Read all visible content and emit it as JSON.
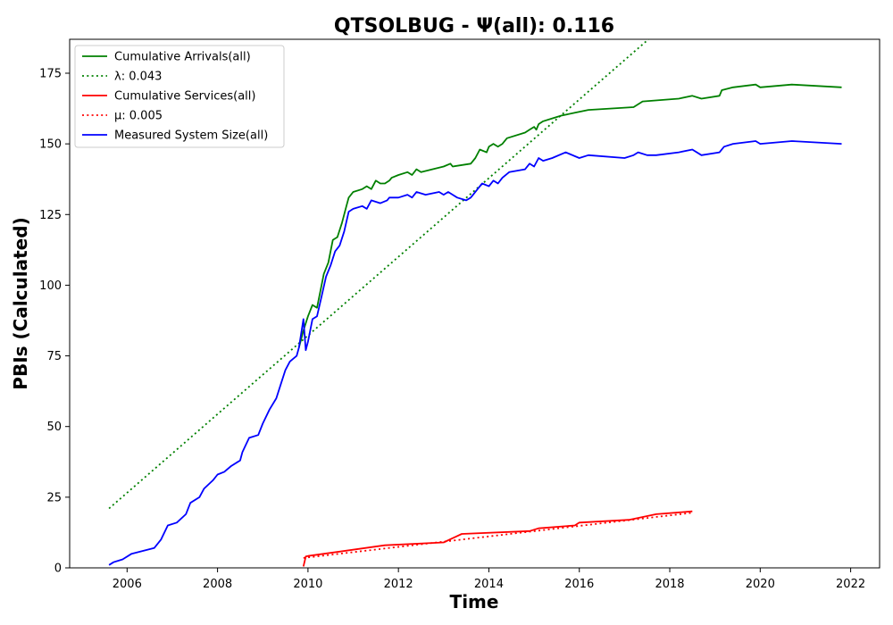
{
  "chart_data": {
    "type": "line",
    "title": "QTSOLBUG -  Ψ(all): 0.116",
    "xlabel": "Time",
    "ylabel": "PBIs (Calculated)",
    "xlim": [
      2004.73,
      2022.64
    ],
    "ylim": [
      0,
      187
    ],
    "x_ticks": [
      2006,
      2008,
      2010,
      2012,
      2014,
      2016,
      2018,
      2020,
      2022
    ],
    "x_tick_labels": [
      "2006",
      "2008",
      "2010",
      "2012",
      "2014",
      "2016",
      "2018",
      "2020",
      "2022"
    ],
    "y_ticks": [
      0,
      25,
      50,
      75,
      100,
      125,
      150,
      175
    ],
    "y_tick_labels": [
      "0",
      "25",
      "50",
      "75",
      "100",
      "125",
      "150",
      "175"
    ],
    "grid": false,
    "legend_position": "upper-left",
    "series": [
      {
        "name": "Cumulative Arrivals(all)",
        "color": "#008000",
        "style": "solid",
        "points": [
          [
            2009.8,
            78
          ],
          [
            2009.9,
            84
          ],
          [
            2010.0,
            89
          ],
          [
            2010.1,
            93
          ],
          [
            2010.2,
            92
          ],
          [
            2010.3,
            100
          ],
          [
            2010.35,
            104
          ],
          [
            2010.45,
            108
          ],
          [
            2010.55,
            116
          ],
          [
            2010.65,
            117
          ],
          [
            2010.75,
            122
          ],
          [
            2010.85,
            128
          ],
          [
            2010.9,
            131
          ],
          [
            2011.0,
            133
          ],
          [
            2011.2,
            134
          ],
          [
            2011.3,
            135
          ],
          [
            2011.4,
            134
          ],
          [
            2011.5,
            137
          ],
          [
            2011.6,
            136
          ],
          [
            2011.7,
            136
          ],
          [
            2011.8,
            137
          ],
          [
            2011.85,
            138
          ],
          [
            2012.0,
            139
          ],
          [
            2012.2,
            140
          ],
          [
            2012.3,
            139
          ],
          [
            2012.4,
            141
          ],
          [
            2012.5,
            140
          ],
          [
            2013.0,
            142
          ],
          [
            2013.15,
            143
          ],
          [
            2013.2,
            142
          ],
          [
            2013.6,
            143
          ],
          [
            2013.7,
            145
          ],
          [
            2013.8,
            148
          ],
          [
            2013.95,
            147
          ],
          [
            2014.0,
            149
          ],
          [
            2014.1,
            150
          ],
          [
            2014.2,
            149
          ],
          [
            2014.3,
            150
          ],
          [
            2014.4,
            152
          ],
          [
            2014.8,
            154
          ],
          [
            2014.9,
            155
          ],
          [
            2015.0,
            156
          ],
          [
            2015.05,
            155
          ],
          [
            2015.1,
            157
          ],
          [
            2015.2,
            158
          ],
          [
            2015.4,
            159
          ],
          [
            2015.6,
            160
          ],
          [
            2015.9,
            161
          ],
          [
            2016.2,
            162
          ],
          [
            2017.2,
            163
          ],
          [
            2017.4,
            165
          ],
          [
            2018.2,
            166
          ],
          [
            2018.5,
            167
          ],
          [
            2018.7,
            166
          ],
          [
            2019.1,
            167
          ],
          [
            2019.15,
            169
          ],
          [
            2019.4,
            170
          ],
          [
            2019.9,
            171
          ],
          [
            2020.0,
            170
          ],
          [
            2020.7,
            171
          ],
          [
            2021.8,
            170
          ]
        ]
      },
      {
        "name": "λ: 0.043",
        "color": "#008000",
        "style": "dotted",
        "points": [
          [
            2005.6,
            21
          ],
          [
            2017.53,
            187
          ]
        ]
      },
      {
        "name": "Cumulative Services(all)",
        "color": "#ff0000",
        "style": "solid",
        "points": [
          [
            2009.9,
            0.5
          ],
          [
            2009.95,
            4
          ],
          [
            2010.0,
            4.2
          ],
          [
            2011.7,
            8
          ],
          [
            2013.0,
            9
          ],
          [
            2013.4,
            12
          ],
          [
            2014.9,
            13
          ],
          [
            2015.1,
            14
          ],
          [
            2015.9,
            15
          ],
          [
            2016.0,
            16
          ],
          [
            2017.1,
            17
          ],
          [
            2017.7,
            19
          ],
          [
            2018.5,
            20
          ]
        ]
      },
      {
        "name": "μ: 0.005",
        "color": "#ff0000",
        "style": "dotted",
        "points": [
          [
            2009.9,
            3.5
          ],
          [
            2018.5,
            19.5
          ]
        ]
      },
      {
        "name": "Measured System Size(all)",
        "color": "#0000ff",
        "style": "solid",
        "points": [
          [
            2005.6,
            1
          ],
          [
            2005.7,
            2
          ],
          [
            2005.9,
            3
          ],
          [
            2006.1,
            5
          ],
          [
            2006.6,
            7
          ],
          [
            2006.75,
            10
          ],
          [
            2006.9,
            15
          ],
          [
            2007.1,
            16
          ],
          [
            2007.3,
            19
          ],
          [
            2007.4,
            23
          ],
          [
            2007.6,
            25
          ],
          [
            2007.7,
            28
          ],
          [
            2007.9,
            31
          ],
          [
            2008.0,
            33
          ],
          [
            2008.15,
            34
          ],
          [
            2008.3,
            36
          ],
          [
            2008.5,
            38
          ],
          [
            2008.55,
            41
          ],
          [
            2008.7,
            46
          ],
          [
            2008.9,
            47
          ],
          [
            2009.0,
            51
          ],
          [
            2009.15,
            56
          ],
          [
            2009.3,
            60
          ],
          [
            2009.4,
            65
          ],
          [
            2009.5,
            70
          ],
          [
            2009.6,
            73
          ],
          [
            2009.75,
            75
          ],
          [
            2009.8,
            78
          ],
          [
            2009.9,
            88
          ],
          [
            2009.95,
            77
          ],
          [
            2010.0,
            80
          ],
          [
            2010.1,
            88
          ],
          [
            2010.2,
            89
          ],
          [
            2010.3,
            96
          ],
          [
            2010.4,
            103
          ],
          [
            2010.5,
            107
          ],
          [
            2010.6,
            112
          ],
          [
            2010.7,
            114
          ],
          [
            2010.8,
            119
          ],
          [
            2010.9,
            126
          ],
          [
            2011.0,
            127
          ],
          [
            2011.2,
            128
          ],
          [
            2011.3,
            127
          ],
          [
            2011.4,
            130
          ],
          [
            2011.6,
            129
          ],
          [
            2011.75,
            130
          ],
          [
            2011.8,
            131
          ],
          [
            2012.0,
            131
          ],
          [
            2012.2,
            132
          ],
          [
            2012.3,
            131
          ],
          [
            2012.4,
            133
          ],
          [
            2012.6,
            132
          ],
          [
            2012.9,
            133
          ],
          [
            2013.0,
            132
          ],
          [
            2013.1,
            133
          ],
          [
            2013.3,
            131
          ],
          [
            2013.5,
            130
          ],
          [
            2013.6,
            131
          ],
          [
            2013.75,
            134
          ],
          [
            2013.85,
            136
          ],
          [
            2014.0,
            135
          ],
          [
            2014.1,
            137
          ],
          [
            2014.2,
            136
          ],
          [
            2014.3,
            138
          ],
          [
            2014.45,
            140
          ],
          [
            2014.8,
            141
          ],
          [
            2014.9,
            143
          ],
          [
            2015.0,
            142
          ],
          [
            2015.1,
            145
          ],
          [
            2015.2,
            144
          ],
          [
            2015.4,
            145
          ],
          [
            2015.7,
            147
          ],
          [
            2016.0,
            145
          ],
          [
            2016.2,
            146
          ],
          [
            2017.0,
            145
          ],
          [
            2017.2,
            146
          ],
          [
            2017.3,
            147
          ],
          [
            2017.5,
            146
          ],
          [
            2017.7,
            146
          ],
          [
            2018.2,
            147
          ],
          [
            2018.5,
            148
          ],
          [
            2018.7,
            146
          ],
          [
            2019.1,
            147
          ],
          [
            2019.2,
            149
          ],
          [
            2019.4,
            150
          ],
          [
            2019.9,
            151
          ],
          [
            2020.0,
            150
          ],
          [
            2020.7,
            151
          ],
          [
            2021.8,
            150
          ]
        ]
      }
    ]
  }
}
